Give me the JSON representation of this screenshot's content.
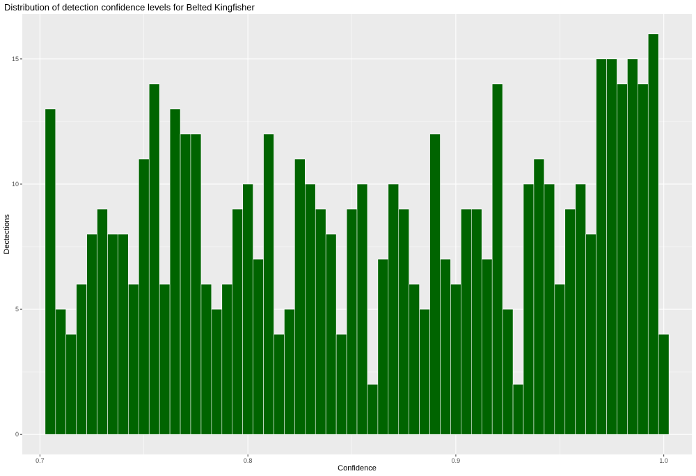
{
  "chart_data": {
    "type": "bar",
    "title": "Distribution of detection confidence levels for Belted Kingfisher",
    "xlabel": "Confidence",
    "ylabel": "Dectections",
    "xlim": [
      0.6915,
      1.0135
    ],
    "ylim": [
      -0.8,
      16.8
    ],
    "x_ticks": [
      0.7,
      0.8,
      0.9,
      1.0
    ],
    "x_tick_labels": [
      "0.7",
      "0.8",
      "0.9",
      "1.0"
    ],
    "y_ticks": [
      0,
      5,
      10,
      15
    ],
    "y_tick_labels": [
      "0",
      "5",
      "10",
      "15"
    ],
    "bin_width": 0.005,
    "first_bin_start": 0.7025,
    "values": [
      13,
      5,
      4,
      6,
      8,
      9,
      8,
      8,
      6,
      11,
      14,
      6,
      13,
      12,
      12,
      6,
      5,
      6,
      9,
      10,
      7,
      12,
      4,
      5,
      11,
      10,
      9,
      8,
      4,
      9,
      10,
      2,
      7,
      10,
      9,
      6,
      5,
      12,
      7,
      6,
      9,
      9,
      7,
      14,
      5,
      2,
      10,
      11,
      10,
      6,
      9,
      10,
      8,
      15,
      15,
      14,
      15,
      14,
      16,
      4
    ],
    "bar_color": "#006400",
    "panel_background": "#ebebeb",
    "grid": true,
    "legend": "none"
  }
}
